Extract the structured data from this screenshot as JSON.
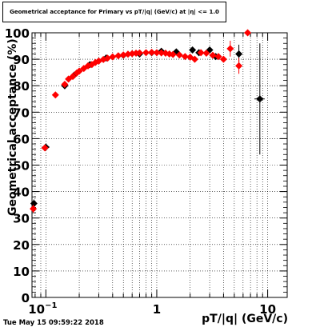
{
  "title": "Geometrical acceptance for Primary vs pT/|q| (GeV/c) at |η| <= 1.0",
  "footer": "Tue May 15 09:59:22 2018",
  "chart_data": {
    "type": "scatter",
    "title": "Geometrical acceptance for Primary vs pT/|q| (GeV/c) at |η| <= 1.0",
    "xlabel": "pT/|q| (GeV/c)",
    "ylabel": "Geometrical acceptance (%)",
    "xscale": "log",
    "xlim": [
      0.075,
      15
    ],
    "ylim": [
      0,
      100
    ],
    "xticks": [
      {
        "value": 0.1,
        "label": "10⁻¹"
      },
      {
        "value": 1,
        "label": "1"
      },
      {
        "value": 10,
        "label": "10"
      }
    ],
    "yticks": [
      0,
      10,
      20,
      30,
      40,
      50,
      60,
      70,
      80,
      90,
      100
    ],
    "grid": true,
    "series": [
      {
        "color": "#000000",
        "marker": "diamond",
        "points": [
          {
            "x": 0.078,
            "y": 35.5,
            "ey": 1.5
          },
          {
            "x": 0.1,
            "y": 56.8,
            "ey": 1.0,
            "ex": 0.008
          },
          {
            "x": 0.148,
            "y": 80.0,
            "ey": 1.2
          },
          {
            "x": 0.18,
            "y": 84.0
          },
          {
            "x": 0.25,
            "y": 88.0
          },
          {
            "x": 0.35,
            "y": 90.5
          },
          {
            "x": 0.5,
            "y": 91.5
          },
          {
            "x": 0.7,
            "y": 92.0
          },
          {
            "x": 0.9,
            "y": 92.5
          },
          {
            "x": 1.1,
            "y": 93.0
          },
          {
            "x": 1.5,
            "y": 92.8
          },
          {
            "x": 2.1,
            "y": 93.5
          },
          {
            "x": 2.4,
            "y": 92.5
          },
          {
            "x": 3.0,
            "y": 93.5
          },
          {
            "x": 3.4,
            "y": 91.0
          },
          {
            "x": 5.5,
            "y": 92.0,
            "ey": 3.5
          },
          {
            "x": 8.5,
            "y": 75.0,
            "ey": 21,
            "ex": 0.9
          }
        ]
      },
      {
        "color": "#ff0000",
        "marker": "diamond",
        "points": [
          {
            "x": 0.077,
            "y": 33.5,
            "ey": 1.5
          },
          {
            "x": 0.098,
            "y": 56.5,
            "ey": 1.0
          },
          {
            "x": 0.122,
            "y": 76.5,
            "ey": 1.0
          },
          {
            "x": 0.148,
            "y": 80.5
          },
          {
            "x": 0.16,
            "y": 82.5
          },
          {
            "x": 0.175,
            "y": 83.5
          },
          {
            "x": 0.19,
            "y": 84.8
          },
          {
            "x": 0.2,
            "y": 85.5
          },
          {
            "x": 0.22,
            "y": 86.5
          },
          {
            "x": 0.24,
            "y": 87.5
          },
          {
            "x": 0.26,
            "y": 88.0
          },
          {
            "x": 0.28,
            "y": 88.8
          },
          {
            "x": 0.3,
            "y": 89.3
          },
          {
            "x": 0.33,
            "y": 89.9
          },
          {
            "x": 0.36,
            "y": 90.4
          },
          {
            "x": 0.4,
            "y": 90.9
          },
          {
            "x": 0.45,
            "y": 91.3
          },
          {
            "x": 0.5,
            "y": 91.6
          },
          {
            "x": 0.55,
            "y": 91.9
          },
          {
            "x": 0.6,
            "y": 92.1
          },
          {
            "x": 0.65,
            "y": 92.3
          },
          {
            "x": 0.7,
            "y": 92.4
          },
          {
            "x": 0.8,
            "y": 92.5
          },
          {
            "x": 0.9,
            "y": 92.6
          },
          {
            "x": 1.0,
            "y": 92.5
          },
          {
            "x": 1.1,
            "y": 92.4
          },
          {
            "x": 1.2,
            "y": 92.3
          },
          {
            "x": 1.3,
            "y": 92.0
          },
          {
            "x": 1.4,
            "y": 91.8
          },
          {
            "x": 1.6,
            "y": 91.6
          },
          {
            "x": 1.8,
            "y": 91.0
          },
          {
            "x": 2.0,
            "y": 90.8
          },
          {
            "x": 2.2,
            "y": 90.0
          },
          {
            "x": 2.5,
            "y": 92.5
          },
          {
            "x": 2.8,
            "y": 92.3
          },
          {
            "x": 3.2,
            "y": 91.5
          },
          {
            "x": 3.6,
            "y": 91.0
          },
          {
            "x": 4.0,
            "y": 90.0
          },
          {
            "x": 4.6,
            "y": 94.0,
            "ey": 3
          },
          {
            "x": 5.5,
            "y": 87.5,
            "ey": 3
          },
          {
            "x": 6.6,
            "y": 100.0
          }
        ]
      }
    ]
  }
}
